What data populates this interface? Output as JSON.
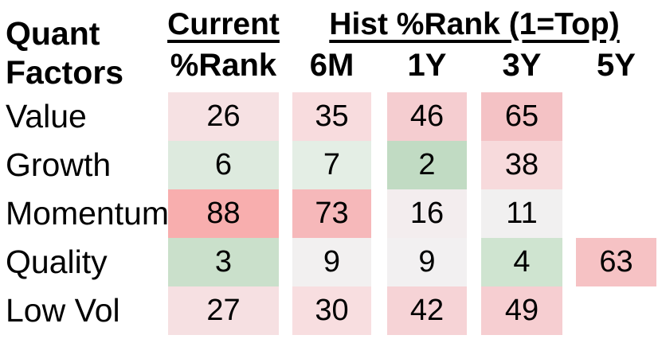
{
  "corner": {
    "line1": "Quant",
    "line2": "Factors"
  },
  "current_group": {
    "title": "Current",
    "sub": "%Rank"
  },
  "hist_group": {
    "title": "Hist %Rank (1=Top)"
  },
  "columns": {
    "m6": "6M",
    "y1": "1Y",
    "y3": "3Y",
    "y5": "5Y"
  },
  "rows": [
    {
      "label": "Value",
      "current": {
        "value": "26",
        "bg": "#f6e1e3"
      },
      "m6": {
        "value": "35",
        "bg": "#f8dcde"
      },
      "y1": {
        "value": "46",
        "bg": "#f5cdd0"
      },
      "y3": {
        "value": "65",
        "bg": "#f4c2c5"
      }
    },
    {
      "label": "Growth",
      "current": {
        "value": "6",
        "bg": "#ddeade"
      },
      "m6": {
        "value": "7",
        "bg": "#e4eee5"
      },
      "y1": {
        "value": "2",
        "bg": "#c1dbc3"
      },
      "y3": {
        "value": "38",
        "bg": "#f7dadc"
      }
    },
    {
      "label": "Momentum",
      "current": {
        "value": "88",
        "bg": "#f8aeae"
      },
      "m6": {
        "value": "73",
        "bg": "#f6b8ba"
      },
      "y1": {
        "value": "16",
        "bg": "#f3edee"
      },
      "y3": {
        "value": "11",
        "bg": "#f1f0f0"
      }
    },
    {
      "label": "Quality",
      "current": {
        "value": "3",
        "bg": "#cae0cb"
      },
      "m6": {
        "value": "9",
        "bg": "#f2f0f0"
      },
      "y1": {
        "value": "9",
        "bg": "#f2f0f1"
      },
      "y3": {
        "value": "4",
        "bg": "#cfe4d0"
      },
      "y5": {
        "value": "63",
        "bg": "#f6c2c4"
      }
    },
    {
      "label": "Low Vol",
      "current": {
        "value": "27",
        "bg": "#f6e0e2"
      },
      "m6": {
        "value": "30",
        "bg": "#f8dee0"
      },
      "y1": {
        "value": "42",
        "bg": "#f6d3d6"
      },
      "y3": {
        "value": "49",
        "bg": "#f6ced1"
      }
    }
  ],
  "chart_data": {
    "type": "heatmap",
    "title": "Hist %Rank (1=Top)",
    "row_header": "Quant Factors",
    "columns": [
      "Current %Rank",
      "6M",
      "1Y",
      "3Y",
      "5Y"
    ],
    "rows": [
      "Value",
      "Growth",
      "Momentum",
      "Quality",
      "Low Vol"
    ],
    "values": [
      [
        26,
        35,
        46,
        65,
        null
      ],
      [
        6,
        7,
        2,
        38,
        null
      ],
      [
        88,
        73,
        16,
        11,
        null
      ],
      [
        3,
        9,
        9,
        4,
        63
      ],
      [
        27,
        30,
        42,
        49,
        null
      ]
    ],
    "color_scale": {
      "low": "#7fbf7f green (rank 1 = top)",
      "mid": "#f0f0f0 near white (~12)",
      "high": "#f8a0a0 red (rank 100)"
    },
    "legend_note": "1=Top"
  }
}
